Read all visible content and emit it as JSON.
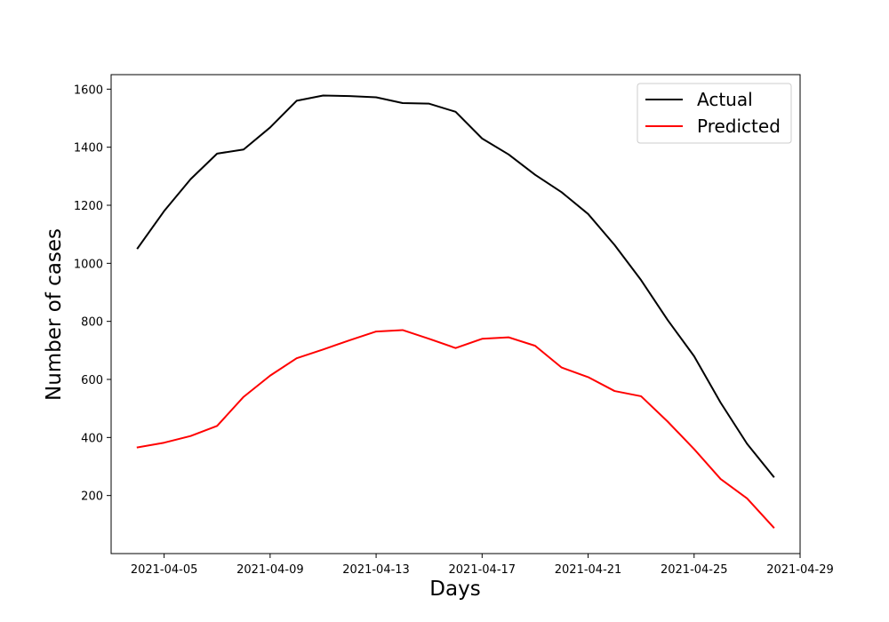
{
  "chart_data": {
    "type": "line",
    "title": "",
    "xlabel": "Days",
    "ylabel": "Number of cases",
    "x": [
      "2021-04-04",
      "2021-04-05",
      "2021-04-06",
      "2021-04-07",
      "2021-04-08",
      "2021-04-09",
      "2021-04-10",
      "2021-04-11",
      "2021-04-12",
      "2021-04-13",
      "2021-04-14",
      "2021-04-15",
      "2021-04-16",
      "2021-04-17",
      "2021-04-18",
      "2021-04-19",
      "2021-04-20",
      "2021-04-21",
      "2021-04-22",
      "2021-04-23",
      "2021-04-24",
      "2021-04-25",
      "2021-04-26",
      "2021-04-27",
      "2021-04-28"
    ],
    "x_ticks": [
      "2021-04-05",
      "2021-04-09",
      "2021-04-13",
      "2021-04-17",
      "2021-04-21",
      "2021-04-25",
      "2021-04-29"
    ],
    "xlim": [
      "2021-04-03",
      "2021-04-29"
    ],
    "ylim": [
      0,
      1650
    ],
    "y_ticks": [
      200,
      400,
      600,
      800,
      1000,
      1200,
      1400,
      1600
    ],
    "grid": false,
    "legend_position": "top-right",
    "series": [
      {
        "name": "Actual",
        "color": "#000000",
        "values": [
          1052,
          1180,
          1290,
          1378,
          1392,
          1468,
          1560,
          1578,
          1576,
          1572,
          1552,
          1550,
          1522,
          1430,
          1375,
          1305,
          1245,
          1170,
          1063,
          942,
          805,
          680,
          520,
          378,
          265
        ]
      },
      {
        "name": "Predicted",
        "color": "#ff0000",
        "values": [
          366,
          382,
          405,
          440,
          540,
          613,
          673,
          703,
          735,
          765,
          770,
          740,
          708,
          740,
          745,
          716,
          641,
          608,
          560,
          542,
          455,
          360,
          257,
          190,
          90
        ]
      }
    ]
  }
}
